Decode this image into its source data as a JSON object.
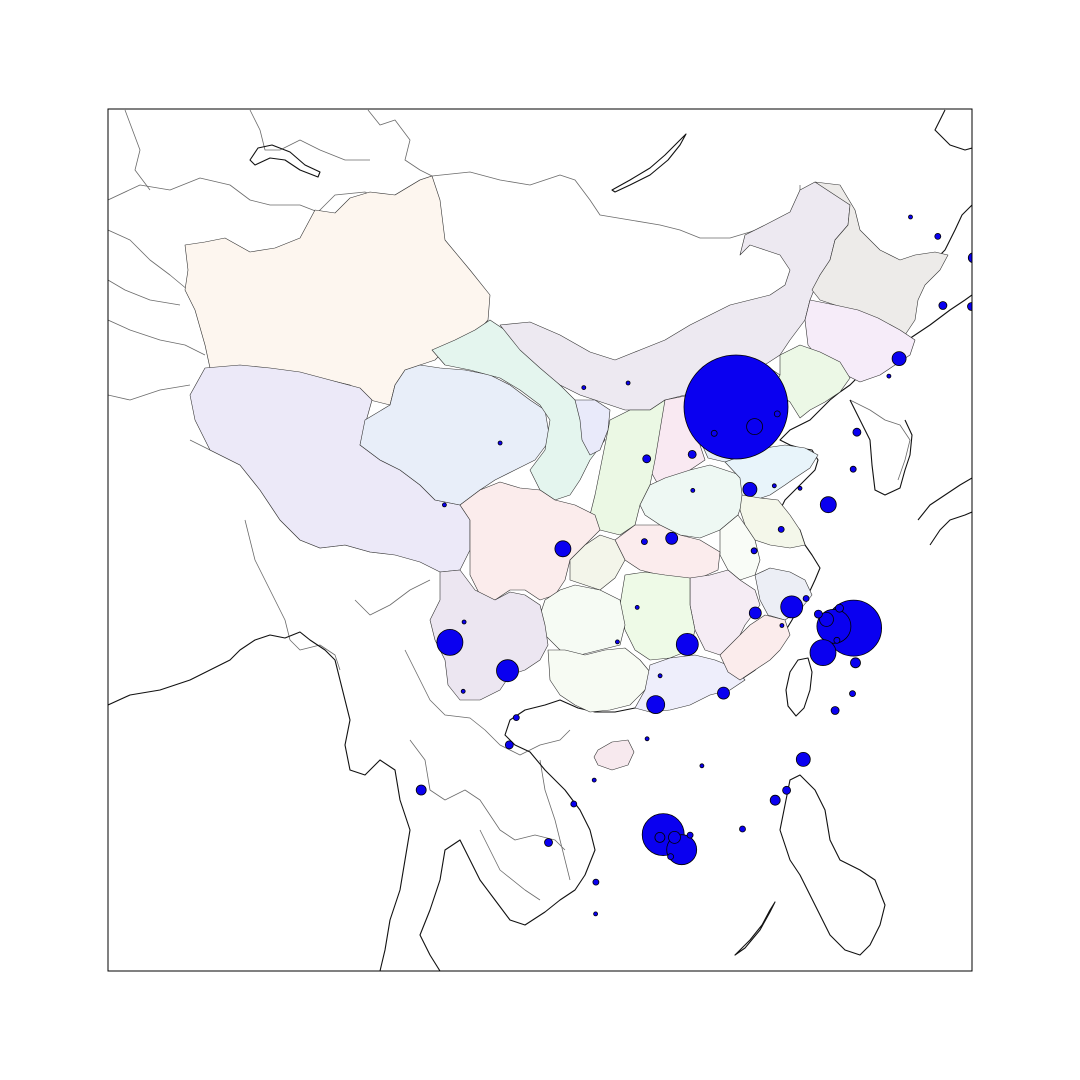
{
  "map": {
    "marker_color": "#0a00f0",
    "marker_edge": "#000000",
    "provinces": [
      {
        "id": "xinjiang",
        "color": "#fdf6ef"
      },
      {
        "id": "tibet",
        "color": "#ece9f8"
      },
      {
        "id": "qinghai",
        "color": "#e8eef9"
      },
      {
        "id": "gansu",
        "color": "#e4f5ee"
      },
      {
        "id": "inner-mongolia",
        "color": "#ede9f1"
      },
      {
        "id": "heilongjiang",
        "color": "#edebe9"
      },
      {
        "id": "jilin",
        "color": "#f6ecf9"
      },
      {
        "id": "liaoning",
        "color": "#ecf8e6"
      },
      {
        "id": "hebei",
        "color": "#e6eef7"
      },
      {
        "id": "shanxi",
        "color": "#f9e9f2"
      },
      {
        "id": "shaanxi",
        "color": "#ebf8e4"
      },
      {
        "id": "ningxia",
        "color": "#e9eafa"
      },
      {
        "id": "henan",
        "color": "#eef8f3"
      },
      {
        "id": "shandong",
        "color": "#e8f4fa"
      },
      {
        "id": "jiangsu",
        "color": "#f4f7ea"
      },
      {
        "id": "anhui",
        "color": "#f9fcf7"
      },
      {
        "id": "hubei",
        "color": "#fbeced"
      },
      {
        "id": "sichuan",
        "color": "#fbecec"
      },
      {
        "id": "chongqing",
        "color": "#f3f5ea"
      },
      {
        "id": "zhejiang",
        "color": "#eceef5"
      },
      {
        "id": "jiangxi",
        "color": "#f5ecf4"
      },
      {
        "id": "hunan",
        "color": "#eefae7"
      },
      {
        "id": "guizhou",
        "color": "#f6fbf4"
      },
      {
        "id": "yunnan",
        "color": "#ece6f1"
      },
      {
        "id": "guangxi",
        "color": "#f7fbf3"
      },
      {
        "id": "guangdong",
        "color": "#eeeefb"
      },
      {
        "id": "fujian",
        "color": "#fbecec"
      },
      {
        "id": "hainan",
        "color": "#f7e9ee"
      },
      {
        "id": "taiwan",
        "color": "#ffffff"
      }
    ],
    "markers": [
      {
        "id": "beijing",
        "lon": 116.4,
        "lat": 39.9,
        "size": 52
      },
      {
        "id": "shanghai",
        "lon": 121.47,
        "lat": 31.23,
        "size": 28
      },
      {
        "id": "guangzhou",
        "lon": 113.26,
        "lat": 23.13,
        "size": 21
      },
      {
        "id": "shenzhen",
        "lon": 114.06,
        "lat": 22.54,
        "size": 15
      },
      {
        "id": "suzhou",
        "lon": 120.62,
        "lat": 31.3,
        "size": 17
      },
      {
        "id": "hangzhou",
        "lon": 120.15,
        "lat": 30.27,
        "size": 13
      },
      {
        "id": "chengdu",
        "lon": 104.07,
        "lat": 30.67,
        "size": 13
      },
      {
        "id": "chongqing",
        "lon": 106.55,
        "lat": 29.56,
        "size": 11
      },
      {
        "id": "wuhan",
        "lon": 114.3,
        "lat": 30.59,
        "size": 11
      },
      {
        "id": "nanjing",
        "lon": 118.8,
        "lat": 32.06,
        "size": 11
      },
      {
        "id": "tianjin",
        "lon": 117.2,
        "lat": 39.13,
        "size": 8
      },
      {
        "id": "xian",
        "lon": 108.94,
        "lat": 34.34,
        "size": 8
      },
      {
        "id": "changsha",
        "lon": 112.94,
        "lat": 28.23,
        "size": 9
      },
      {
        "id": "shenyang",
        "lon": 123.43,
        "lat": 41.8,
        "size": 7
      },
      {
        "id": "qingdao",
        "lon": 120.38,
        "lat": 36.07,
        "size": 8
      },
      {
        "id": "zhengzhou",
        "lon": 113.63,
        "lat": 34.75,
        "size": 6
      },
      {
        "id": "jinan",
        "lon": 117.0,
        "lat": 36.67,
        "size": 7
      },
      {
        "id": "fuzhou",
        "lon": 119.3,
        "lat": 26.08,
        "size": 7
      },
      {
        "id": "nanchang",
        "lon": 115.86,
        "lat": 28.68,
        "size": 6
      },
      {
        "id": "hefei",
        "lon": 117.23,
        "lat": 31.82,
        "size": 6
      },
      {
        "id": "xiamen",
        "lon": 118.09,
        "lat": 24.48,
        "size": 5
      },
      {
        "id": "harbin",
        "lon": 126.63,
        "lat": 45.75,
        "size": 5
      },
      {
        "id": "kunming",
        "lon": 102.83,
        "lat": 24.88,
        "size": 5
      },
      {
        "id": "changchun",
        "lon": 125.32,
        "lat": 43.88,
        "size": 4
      },
      {
        "id": "dalian",
        "lon": 121.61,
        "lat": 38.91,
        "size": 4
      },
      {
        "id": "ningbo",
        "lon": 121.55,
        "lat": 29.87,
        "size": 5
      },
      {
        "id": "wuxi",
        "lon": 120.3,
        "lat": 31.57,
        "size": 7
      },
      {
        "id": "foshan",
        "lon": 113.12,
        "lat": 23.02,
        "size": 5
      },
      {
        "id": "dongguan",
        "lon": 113.75,
        "lat": 23.02,
        "size": 6
      },
      {
        "id": "shijiazhuang",
        "lon": 114.51,
        "lat": 38.04,
        "size": 4
      },
      {
        "id": "taiyuan",
        "lon": 112.55,
        "lat": 37.87,
        "size": 4
      },
      {
        "id": "nanning",
        "lon": 108.32,
        "lat": 22.82,
        "size": 4
      },
      {
        "id": "guiyang",
        "lon": 106.63,
        "lat": 26.65,
        "size": 4
      },
      {
        "id": "wenzhou",
        "lon": 120.67,
        "lat": 28.0,
        "size": 4
      },
      {
        "id": "xuzhou",
        "lon": 117.18,
        "lat": 34.26,
        "size": 3
      },
      {
        "id": "luoyang",
        "lon": 112.45,
        "lat": 34.62,
        "size": 3
      },
      {
        "id": "tangshan",
        "lon": 118.18,
        "lat": 39.63,
        "size": 3
      },
      {
        "id": "jilin-city",
        "lon": 126.55,
        "lat": 43.84,
        "size": 4
      },
      {
        "id": "daqing",
        "lon": 125.1,
        "lat": 46.59,
        "size": 3
      },
      {
        "id": "baoding",
        "lon": 115.46,
        "lat": 38.87,
        "size": 3
      },
      {
        "id": "yangzhou",
        "lon": 119.42,
        "lat": 32.39,
        "size": 3
      },
      {
        "id": "nantong",
        "lon": 120.86,
        "lat": 32.01,
        "size": 4
      },
      {
        "id": "changzhou",
        "lon": 119.95,
        "lat": 31.78,
        "size": 4
      },
      {
        "id": "jiaxing",
        "lon": 120.75,
        "lat": 30.75,
        "size": 3
      },
      {
        "id": "taizhou-zj",
        "lon": 121.42,
        "lat": 28.66,
        "size": 3
      },
      {
        "id": "quanzhou",
        "lon": 118.58,
        "lat": 24.87,
        "size": 4
      },
      {
        "id": "zhuhai",
        "lon": 113.58,
        "lat": 22.27,
        "size": 3
      },
      {
        "id": "huizhou",
        "lon": 114.42,
        "lat": 23.11,
        "size": 3
      },
      {
        "id": "shantou",
        "lon": 116.68,
        "lat": 23.35,
        "size": 3
      },
      {
        "id": "zhanjiang",
        "lon": 110.36,
        "lat": 21.27,
        "size": 3
      },
      {
        "id": "liuzhou",
        "lon": 109.41,
        "lat": 24.33,
        "size": 3
      },
      {
        "id": "guilin",
        "lon": 110.29,
        "lat": 25.27,
        "size": 2
      },
      {
        "id": "zunyi",
        "lon": 106.93,
        "lat": 27.72,
        "size": 3
      },
      {
        "id": "mianyang",
        "lon": 104.68,
        "lat": 31.47,
        "size": 2
      },
      {
        "id": "yibin",
        "lon": 104.64,
        "lat": 28.75,
        "size": 2
      },
      {
        "id": "lanzhou",
        "lon": 103.83,
        "lat": 36.06,
        "size": 2
      },
      {
        "id": "yinchuan",
        "lon": 106.23,
        "lat": 38.49,
        "size": 2
      },
      {
        "id": "hohhot",
        "lon": 111.75,
        "lat": 40.84,
        "size": 2
      },
      {
        "id": "baotou",
        "lon": 109.84,
        "lat": 40.66,
        "size": 2
      },
      {
        "id": "handan",
        "lon": 114.54,
        "lat": 36.63,
        "size": 2
      },
      {
        "id": "linyi",
        "lon": 118.35,
        "lat": 35.1,
        "size": 3
      },
      {
        "id": "yantai",
        "lon": 121.45,
        "lat": 37.46,
        "size": 3
      },
      {
        "id": "weifang",
        "lon": 119.16,
        "lat": 36.71,
        "size": 2
      },
      {
        "id": "zibo",
        "lon": 118.05,
        "lat": 36.81,
        "size": 2
      },
      {
        "id": "anshan",
        "lon": 122.99,
        "lat": 41.11,
        "size": 2
      },
      {
        "id": "qiqihar",
        "lon": 123.92,
        "lat": 47.35,
        "size": 2
      },
      {
        "id": "yichang",
        "lon": 111.29,
        "lat": 30.69,
        "size": 2
      },
      {
        "id": "xiangyang",
        "lon": 112.14,
        "lat": 32.04,
        "size": 2
      },
      {
        "id": "ganzhou",
        "lon": 114.93,
        "lat": 25.83,
        "size": 2
      },
      {
        "id": "wuhu",
        "lon": 118.38,
        "lat": 31.33,
        "size": 2
      },
      {
        "id": "yueyang",
        "lon": 113.13,
        "lat": 29.36,
        "size": 2
      },
      {
        "id": "hengyang",
        "lon": 112.57,
        "lat": 26.89,
        "size": 2
      },
      {
        "id": "haikou",
        "lon": 110.35,
        "lat": 20.02,
        "size": 2
      },
      {
        "id": "urumqi-none",
        "lon": 0,
        "lat": 0,
        "size": 0
      }
    ]
  }
}
